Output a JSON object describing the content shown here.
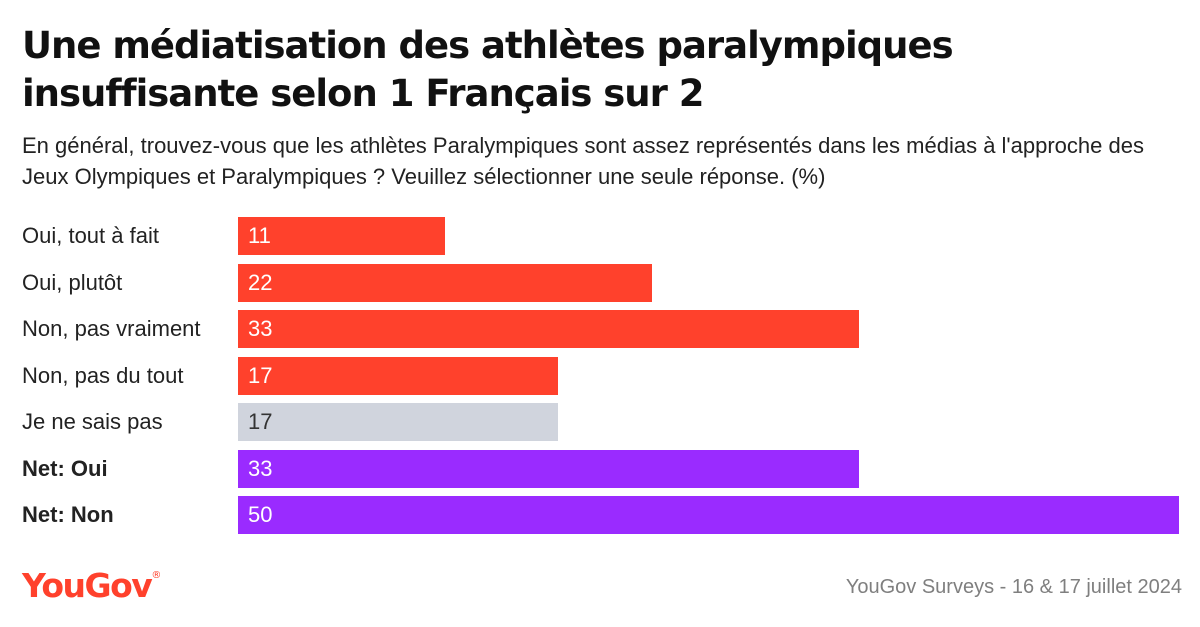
{
  "title": "Une médiatisation des athlètes paralympiques insuffisante selon 1 Français sur 2",
  "subtitle": "En général, trouvez-vous que les athlètes Paralympiques sont assez représentés dans les médias à l'approche des Jeux Olympiques et Paralympiques ? Veuillez sélectionner une seule réponse. (%)",
  "brand": {
    "name": "YouGov",
    "mark": "®"
  },
  "source": "YouGov Surveys - 16 & 17 juillet 2024",
  "colors": {
    "red": "#ff412c",
    "grey": "#d0d4dd",
    "purple": "#9a2bff"
  },
  "chart_data": {
    "type": "bar",
    "orientation": "horizontal",
    "unit": "%",
    "categories": [
      "Oui, tout à fait",
      "Oui, plutôt",
      "Non, pas vraiment",
      "Non, pas du tout",
      "Je ne sais pas",
      "Net: Oui",
      "Net: Non"
    ],
    "values": [
      11,
      22,
      33,
      17,
      17,
      33,
      50
    ],
    "bar_colors": [
      "#ff412c",
      "#ff412c",
      "#ff412c",
      "#ff412c",
      "#d0d4dd",
      "#9a2bff",
      "#9a2bff"
    ],
    "label_colors": [
      "#ffffff",
      "#ffffff",
      "#ffffff",
      "#ffffff",
      "#333333",
      "#ffffff",
      "#ffffff"
    ],
    "bold_labels": [
      false,
      false,
      false,
      false,
      false,
      true,
      true
    ],
    "xlim": [
      0,
      50
    ]
  }
}
